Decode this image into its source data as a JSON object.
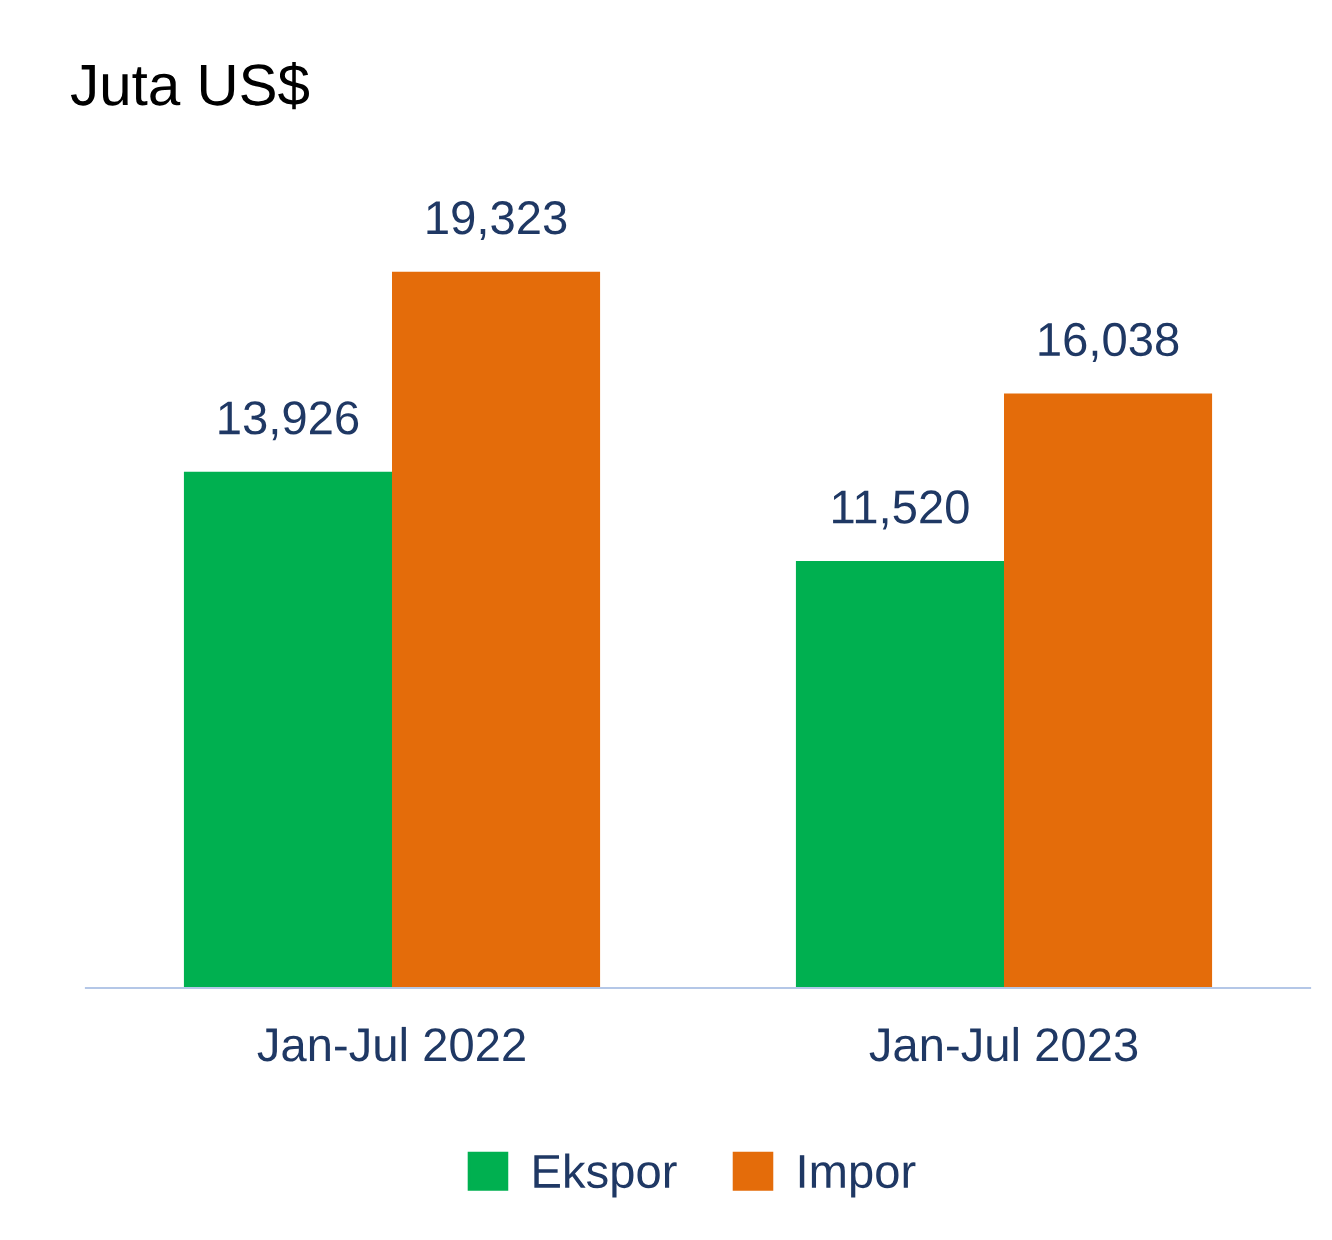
{
  "chart_data": {
    "type": "bar",
    "title": "Juta US$",
    "categories": [
      "Jan-Jul 2022",
      "Jan-Jul 2023"
    ],
    "series": [
      {
        "name": "Ekspor",
        "color": "#00b050",
        "values": [
          13926,
          11520
        ],
        "value_labels": [
          "13,926",
          "11,520"
        ]
      },
      {
        "name": "Impor",
        "color": "#e46c0a",
        "values": [
          19323,
          16038
        ],
        "value_labels": [
          "19,323",
          "16,038"
        ]
      }
    ],
    "legend": "bottom"
  }
}
